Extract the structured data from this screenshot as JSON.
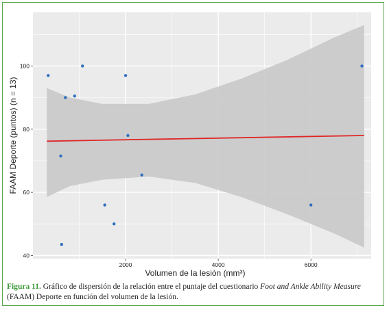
{
  "chart_data": {
    "type": "scatter",
    "xlabel": "Volumen de la lesión (mm³)",
    "ylabel": "FAAM Deporte (puntos) (n = 13)",
    "xlim": [
      0,
      7300
    ],
    "ylim": [
      39,
      117
    ],
    "x_ticks": [
      2000,
      4000,
      6000
    ],
    "y_ticks": [
      40,
      60,
      80,
      100
    ],
    "points": [
      {
        "x": 330,
        "y": 97
      },
      {
        "x": 600,
        "y": 71.5
      },
      {
        "x": 620,
        "y": 43.5
      },
      {
        "x": 700,
        "y": 90
      },
      {
        "x": 900,
        "y": 90.5
      },
      {
        "x": 1070,
        "y": 100
      },
      {
        "x": 1550,
        "y": 56
      },
      {
        "x": 1750,
        "y": 50
      },
      {
        "x": 2000,
        "y": 97
      },
      {
        "x": 2050,
        "y": 78
      },
      {
        "x": 2350,
        "y": 65.5
      },
      {
        "x": 6000,
        "y": 56
      },
      {
        "x": 7100,
        "y": 100
      }
    ],
    "regression_line": {
      "x": [
        300,
        7150
      ],
      "y": [
        76.2,
        78
      ]
    },
    "confidence_band": {
      "x": [
        300,
        800,
        1500,
        2500,
        3500,
        4500,
        5500,
        6500,
        7150
      ],
      "upper": [
        93,
        90,
        88,
        88,
        91,
        96,
        102,
        109,
        113
      ],
      "lower": [
        58.5,
        62,
        64,
        65,
        63,
        58.5,
        53,
        47,
        42.5
      ]
    },
    "grid": true,
    "colors": {
      "panel": "#ebebeb",
      "grid": "#ffffff",
      "band": "#c9c9c9",
      "points": "#2f6fbf",
      "line": "#e02626"
    }
  },
  "caption": {
    "label": "Figura 11.",
    "text_1": " Gráfico de dispersión de la relación entre el puntaje del cuestionario ",
    "italic": "Foot and Ankle Ability Measure",
    "text_2": " (FAAM) Deporte en función del volumen de la lesión."
  }
}
